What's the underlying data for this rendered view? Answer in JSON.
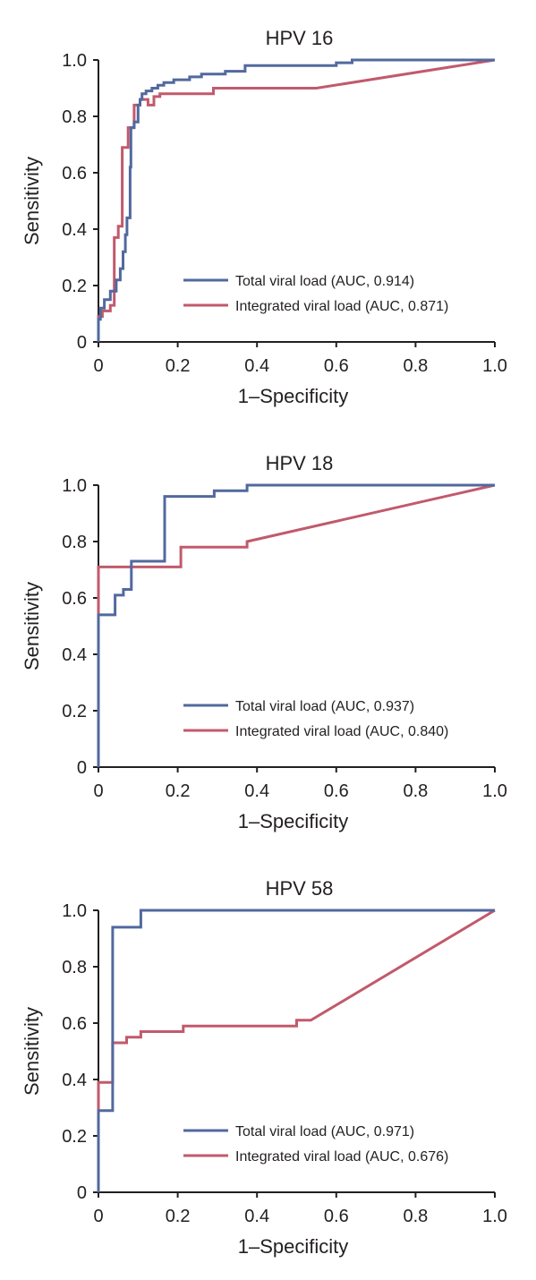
{
  "chart_data": [
    {
      "type": "line",
      "title": "HPV 16",
      "xlabel": "1–Specificity",
      "ylabel": "Sensitivity",
      "xlim": [
        0,
        1
      ],
      "ylim": [
        0,
        1
      ],
      "xticks": [
        "0",
        "0.2",
        "0.4",
        "0.6",
        "0.8",
        "1.0"
      ],
      "yticks": [
        "0",
        "0.2",
        "0.4",
        "0.6",
        "0.8",
        "1.0"
      ],
      "grid": false,
      "legend_position": "bottom-right",
      "series": [
        {
          "name": "Total viral load (AUC, 0.914)",
          "color": "#52699e",
          "points": [
            [
              0,
              0
            ],
            [
              0,
              0.08
            ],
            [
              0.005,
              0.08
            ],
            [
              0.005,
              0.12
            ],
            [
              0.015,
              0.12
            ],
            [
              0.015,
              0.15
            ],
            [
              0.03,
              0.15
            ],
            [
              0.03,
              0.18
            ],
            [
              0.045,
              0.18
            ],
            [
              0.045,
              0.22
            ],
            [
              0.055,
              0.22
            ],
            [
              0.055,
              0.26
            ],
            [
              0.062,
              0.26
            ],
            [
              0.062,
              0.32
            ],
            [
              0.068,
              0.32
            ],
            [
              0.068,
              0.38
            ],
            [
              0.072,
              0.38
            ],
            [
              0.072,
              0.44
            ],
            [
              0.08,
              0.44
            ],
            [
              0.08,
              0.62
            ],
            [
              0.082,
              0.62
            ],
            [
              0.082,
              0.76
            ],
            [
              0.09,
              0.76
            ],
            [
              0.09,
              0.78
            ],
            [
              0.1,
              0.78
            ],
            [
              0.1,
              0.84
            ],
            [
              0.105,
              0.84
            ],
            [
              0.105,
              0.86
            ],
            [
              0.11,
              0.86
            ],
            [
              0.11,
              0.88
            ],
            [
              0.12,
              0.88
            ],
            [
              0.12,
              0.89
            ],
            [
              0.135,
              0.89
            ],
            [
              0.135,
              0.9
            ],
            [
              0.15,
              0.9
            ],
            [
              0.15,
              0.91
            ],
            [
              0.165,
              0.91
            ],
            [
              0.165,
              0.92
            ],
            [
              0.19,
              0.92
            ],
            [
              0.19,
              0.93
            ],
            [
              0.23,
              0.93
            ],
            [
              0.23,
              0.94
            ],
            [
              0.26,
              0.94
            ],
            [
              0.26,
              0.95
            ],
            [
              0.32,
              0.95
            ],
            [
              0.32,
              0.96
            ],
            [
              0.37,
              0.96
            ],
            [
              0.37,
              0.98
            ],
            [
              0.4,
              0.98
            ],
            [
              0.6,
              0.98
            ],
            [
              0.6,
              0.99
            ],
            [
              0.64,
              0.99
            ],
            [
              0.64,
              1.0
            ],
            [
              1.0,
              1.0
            ]
          ]
        },
        {
          "name": "Integrated viral load (AUC, 0.871)",
          "color": "#c15a6c",
          "points": [
            [
              0,
              0
            ],
            [
              0,
              0.09
            ],
            [
              0.01,
              0.09
            ],
            [
              0.01,
              0.11
            ],
            [
              0.03,
              0.11
            ],
            [
              0.03,
              0.13
            ],
            [
              0.04,
              0.13
            ],
            [
              0.04,
              0.37
            ],
            [
              0.05,
              0.37
            ],
            [
              0.05,
              0.41
            ],
            [
              0.06,
              0.41
            ],
            [
              0.06,
              0.69
            ],
            [
              0.075,
              0.69
            ],
            [
              0.075,
              0.76
            ],
            [
              0.09,
              0.76
            ],
            [
              0.09,
              0.84
            ],
            [
              0.105,
              0.84
            ],
            [
              0.105,
              0.86
            ],
            [
              0.125,
              0.86
            ],
            [
              0.125,
              0.84
            ],
            [
              0.14,
              0.84
            ],
            [
              0.14,
              0.87
            ],
            [
              0.155,
              0.87
            ],
            [
              0.155,
              0.88
            ],
            [
              0.29,
              0.88
            ],
            [
              0.29,
              0.9
            ],
            [
              0.55,
              0.9
            ],
            [
              1.0,
              1.0
            ]
          ]
        }
      ]
    },
    {
      "type": "line",
      "title": "HPV 18",
      "xlabel": "1–Specificity",
      "ylabel": "Sensitivity",
      "xlim": [
        0,
        1
      ],
      "ylim": [
        0,
        1
      ],
      "xticks": [
        "0",
        "0.2",
        "0.4",
        "0.6",
        "0.8",
        "1.0"
      ],
      "yticks": [
        "0",
        "0.2",
        "0.4",
        "0.6",
        "0.8",
        "1.0"
      ],
      "grid": false,
      "legend_position": "bottom-right",
      "series": [
        {
          "name": "Total viral load (AUC, 0.937)",
          "color": "#52699e",
          "points": [
            [
              0,
              0
            ],
            [
              0,
              0.54
            ],
            [
              0.042,
              0.54
            ],
            [
              0.042,
              0.61
            ],
            [
              0.063,
              0.61
            ],
            [
              0.063,
              0.63
            ],
            [
              0.083,
              0.63
            ],
            [
              0.083,
              0.73
            ],
            [
              0.167,
              0.73
            ],
            [
              0.167,
              0.96
            ],
            [
              0.292,
              0.96
            ],
            [
              0.292,
              0.98
            ],
            [
              0.375,
              0.98
            ],
            [
              0.375,
              1.0
            ],
            [
              1.0,
              1.0
            ]
          ]
        },
        {
          "name": "Integrated viral load (AUC, 0.840)",
          "color": "#c15a6c",
          "points": [
            [
              0,
              0
            ],
            [
              0,
              0.71
            ],
            [
              0.208,
              0.71
            ],
            [
              0.208,
              0.78
            ],
            [
              0.375,
              0.78
            ],
            [
              0.375,
              0.8
            ],
            [
              1.0,
              1.0
            ]
          ]
        }
      ]
    },
    {
      "type": "line",
      "title": "HPV 58",
      "xlabel": "1–Specificity",
      "ylabel": "Sensitivity",
      "xlim": [
        0,
        1
      ],
      "ylim": [
        0,
        1
      ],
      "xticks": [
        "0",
        "0.2",
        "0.4",
        "0.6",
        "0.8",
        "1.0"
      ],
      "yticks": [
        "0",
        "0.2",
        "0.4",
        "0.6",
        "0.8",
        "1.0"
      ],
      "grid": false,
      "legend_position": "bottom-right",
      "series": [
        {
          "name": "Total viral load (AUC, 0.971)",
          "color": "#52699e",
          "points": [
            [
              0,
              0
            ],
            [
              0,
              0.29
            ],
            [
              0.036,
              0.29
            ],
            [
              0.036,
              0.94
            ],
            [
              0.107,
              0.94
            ],
            [
              0.107,
              1.0
            ],
            [
              1.0,
              1.0
            ]
          ]
        },
        {
          "name": "Integrated viral load (AUC, 0.676)",
          "color": "#c15a6c",
          "points": [
            [
              0,
              0
            ],
            [
              0,
              0.39
            ],
            [
              0.036,
              0.39
            ],
            [
              0.036,
              0.53
            ],
            [
              0.071,
              0.53
            ],
            [
              0.071,
              0.55
            ],
            [
              0.107,
              0.55
            ],
            [
              0.107,
              0.57
            ],
            [
              0.214,
              0.57
            ],
            [
              0.214,
              0.59
            ],
            [
              0.5,
              0.59
            ],
            [
              0.5,
              0.61
            ],
            [
              0.536,
              0.61
            ],
            [
              1.0,
              1.0
            ]
          ]
        }
      ]
    }
  ]
}
